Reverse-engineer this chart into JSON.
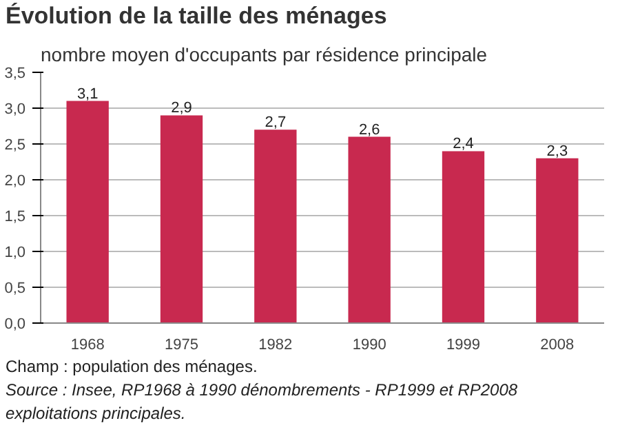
{
  "chart_data": {
    "type": "bar",
    "title": "Évolution de la taille des ménages",
    "subtitle": "nombre moyen d'occupants par résidence principale",
    "categories": [
      "1968",
      "1975",
      "1982",
      "1990",
      "1999",
      "2008"
    ],
    "values": [
      3.1,
      2.9,
      2.7,
      2.6,
      2.4,
      2.3
    ],
    "value_labels": [
      "3,1",
      "2,9",
      "2,7",
      "2,6",
      "2,4",
      "2,3"
    ],
    "color": "#c8294f",
    "ylim": [
      0,
      3.5
    ],
    "yticks": [
      {
        "value": 0,
        "label": "0,0"
      },
      {
        "value": 0.5,
        "label": "0,5"
      },
      {
        "value": 1,
        "label": "1,0"
      },
      {
        "value": 1.5,
        "label": "1,5"
      },
      {
        "value": 2,
        "label": "2,0"
      },
      {
        "value": 2.5,
        "label": "2,5"
      },
      {
        "value": 3,
        "label": "3,0"
      },
      {
        "value": 3.5,
        "label": "3,5"
      }
    ],
    "grid": "y",
    "annotations": [
      "Champ : population des ménages.",
      "Source : Insee, RP1968 à 1990 dénombrements - RP1999 et RP2008 exploitations principales."
    ]
  }
}
